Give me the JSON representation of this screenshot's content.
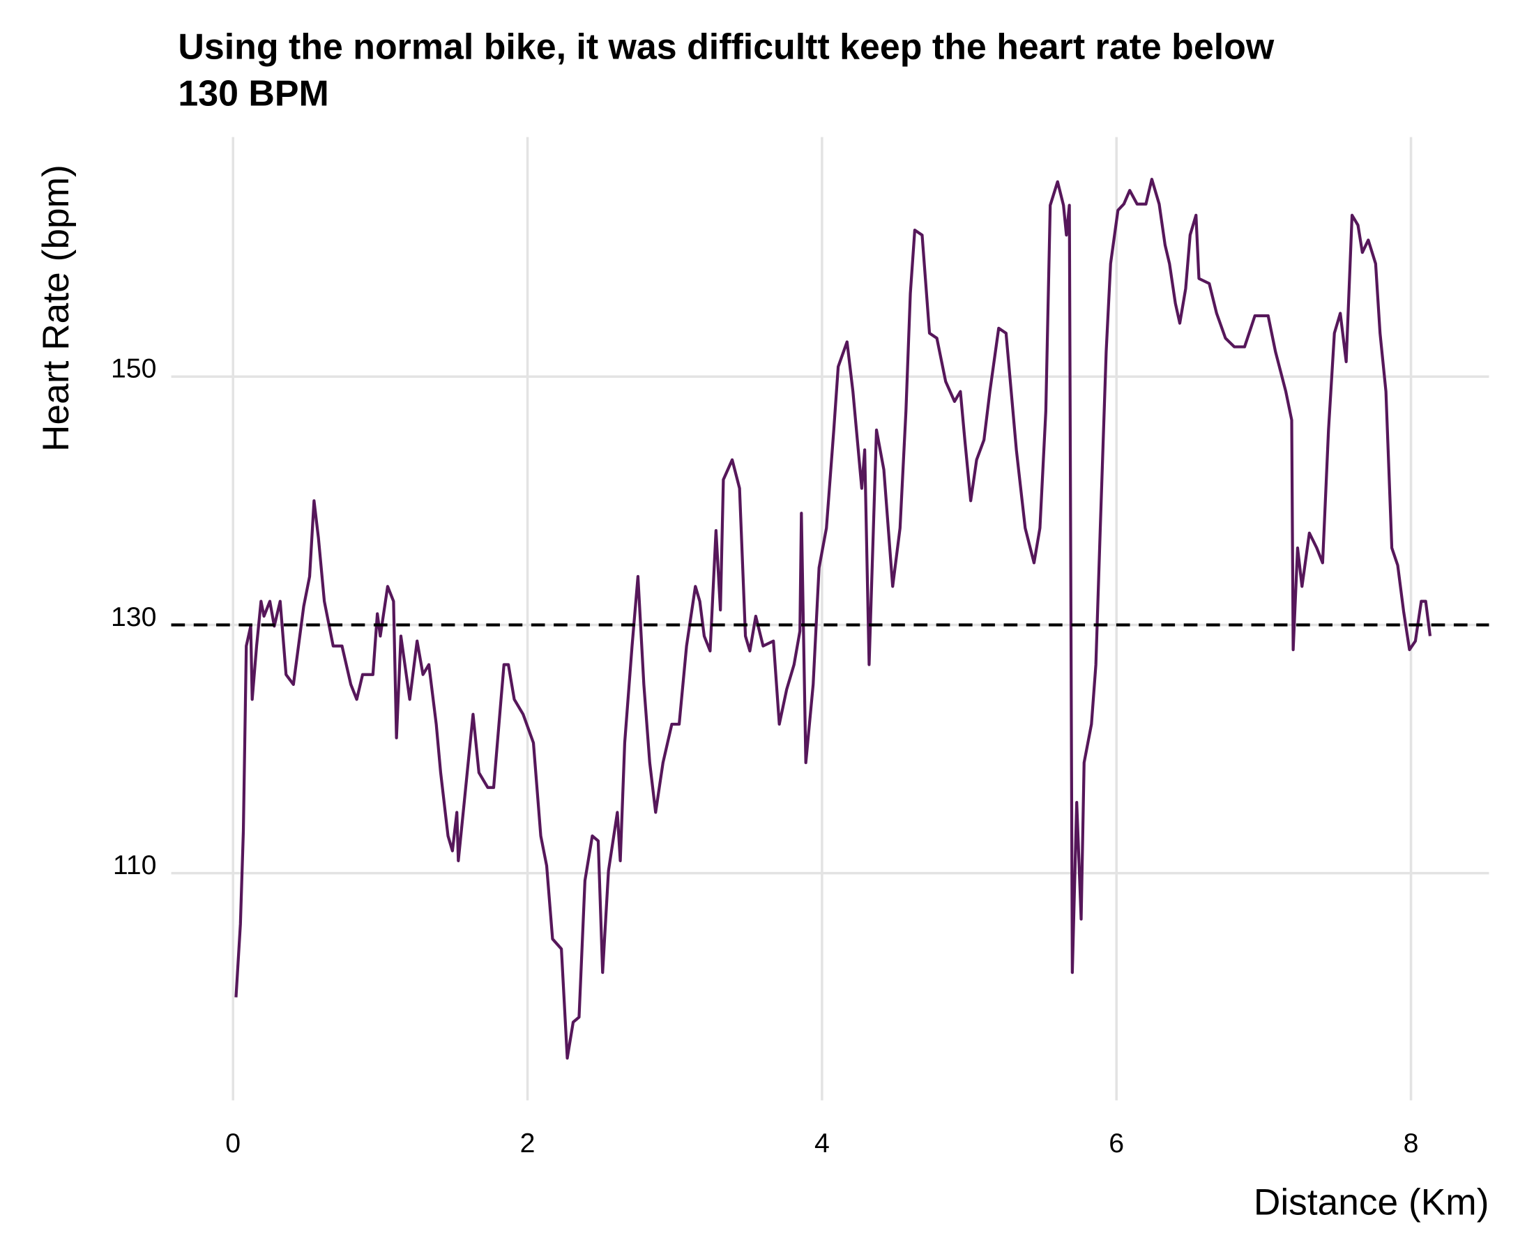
{
  "chart_data": {
    "type": "line",
    "title": [
      "Using the normal bike, it was difficultt keep the heart rate below",
      "130 BPM"
    ],
    "xlabel": "Distance (Km)",
    "ylabel": "Heart Rate (bpm)",
    "color": "#56175a",
    "hline": {
      "value": 130,
      "color": "#000000",
      "style": "dashed"
    },
    "xlim": [
      -0.42,
      8.53
    ],
    "ylim": [
      91.7,
      169.3
    ],
    "xticks": [
      0,
      2,
      4,
      6,
      8
    ],
    "yticks": [
      110,
      130,
      150
    ],
    "grid": true,
    "x": [
      0.02,
      0.05,
      0.07,
      0.09,
      0.12,
      0.13,
      0.16,
      0.19,
      0.21,
      0.25,
      0.28,
      0.32,
      0.36,
      0.41,
      0.48,
      0.52,
      0.55,
      0.58,
      0.62,
      0.68,
      0.74,
      0.8,
      0.84,
      0.88,
      0.95,
      0.98,
      1.0,
      1.05,
      1.09,
      1.11,
      1.14,
      1.2,
      1.25,
      1.29,
      1.33,
      1.38,
      1.41,
      1.46,
      1.49,
      1.52,
      1.53,
      1.57,
      1.63,
      1.67,
      1.73,
      1.77,
      1.82,
      1.84,
      1.87,
      1.91,
      1.97,
      2.04,
      2.09,
      2.13,
      2.17,
      2.23,
      2.27,
      2.31,
      2.35,
      2.39,
      2.44,
      2.48,
      2.51,
      2.55,
      2.61,
      2.63,
      2.66,
      2.71,
      2.75,
      2.79,
      2.83,
      2.87,
      2.92,
      2.98,
      3.03,
      3.08,
      3.14,
      3.17,
      3.2,
      3.24,
      3.28,
      3.31,
      3.33,
      3.39,
      3.44,
      3.48,
      3.51,
      3.55,
      3.6,
      3.67,
      3.71,
      3.76,
      3.81,
      3.85,
      3.86,
      3.89,
      3.94,
      3.98,
      4.03,
      4.08,
      4.11,
      4.17,
      4.21,
      4.27,
      4.29,
      4.32,
      4.37,
      4.42,
      4.48,
      4.53,
      4.57,
      4.6,
      4.63,
      4.68,
      4.73,
      4.78,
      4.84,
      4.9,
      4.94,
      4.97,
      5.01,
      5.05,
      5.1,
      5.14,
      5.2,
      5.25,
      5.32,
      5.38,
      5.44,
      5.48,
      5.52,
      5.55,
      5.6,
      5.64,
      5.66,
      5.68,
      5.7,
      5.73,
      5.76,
      5.78,
      5.83,
      5.86,
      5.89,
      5.93,
      5.96,
      6.01,
      6.05,
      6.09,
      6.14,
      6.2,
      6.24,
      6.29,
      6.33,
      6.36,
      6.4,
      6.43,
      6.47,
      6.5,
      6.54,
      6.56,
      6.63,
      6.68,
      6.74,
      6.8,
      6.87,
      6.94,
      7.03,
      7.08,
      7.15,
      7.19,
      7.2,
      7.23,
      7.26,
      7.31,
      7.36,
      7.4,
      7.44,
      7.48,
      7.52,
      7.56,
      7.6,
      7.64,
      7.67,
      7.71,
      7.76,
      7.79,
      7.83,
      7.87,
      7.91,
      7.95,
      7.99,
      8.03,
      8.07,
      8.1,
      8.13
    ],
    "values": [
      100.0,
      105.9,
      113.4,
      128.3,
      129.9,
      124.0,
      128.3,
      131.9,
      130.7,
      131.9,
      129.9,
      131.9,
      126.0,
      125.2,
      131.5,
      133.9,
      140.0,
      137.0,
      131.9,
      128.3,
      128.3,
      125.2,
      124.0,
      126.0,
      126.0,
      130.9,
      129.1,
      133.1,
      131.9,
      120.9,
      129.1,
      124.0,
      128.7,
      126.0,
      126.8,
      122.0,
      118.1,
      113.0,
      111.8,
      114.9,
      111.0,
      115.7,
      122.8,
      118.1,
      116.9,
      116.9,
      124.0,
      126.8,
      126.8,
      124.0,
      122.8,
      120.5,
      113.0,
      110.6,
      104.7,
      103.9,
      95.1,
      98.0,
      98.4,
      109.4,
      113.0,
      112.6,
      102.0,
      110.2,
      114.9,
      111.0,
      120.5,
      128.3,
      133.9,
      125.2,
      118.9,
      114.9,
      118.9,
      122.0,
      122.0,
      128.3,
      133.1,
      131.9,
      129.1,
      127.9,
      137.6,
      131.2,
      141.7,
      143.3,
      141.0,
      129.1,
      127.9,
      130.7,
      128.3,
      128.7,
      122.0,
      124.8,
      126.8,
      129.5,
      139.0,
      118.9,
      125.2,
      134.6,
      137.8,
      145.7,
      150.8,
      152.8,
      148.8,
      141.0,
      144.1,
      126.8,
      145.7,
      142.5,
      133.1,
      137.8,
      147.2,
      156.7,
      161.8,
      161.4,
      153.5,
      153.1,
      149.6,
      148.0,
      148.8,
      144.9,
      140.0,
      143.3,
      144.9,
      148.8,
      153.9,
      153.5,
      144.1,
      137.8,
      135.0,
      137.8,
      147.2,
      163.8,
      165.7,
      163.8,
      161.4,
      163.8,
      102.0,
      115.7,
      106.3,
      118.9,
      122.0,
      126.8,
      137.8,
      152.0,
      159.1,
      163.4,
      163.9,
      165.0,
      163.9,
      163.9,
      165.9,
      163.9,
      160.6,
      159.1,
      155.9,
      154.3,
      157.1,
      161.4,
      163.0,
      157.9,
      157.5,
      155.1,
      153.1,
      152.4,
      152.4,
      154.9,
      154.9,
      152.0,
      148.8,
      146.5,
      128.0,
      136.2,
      133.1,
      137.4,
      136.2,
      135.0,
      145.7,
      153.5,
      155.1,
      151.2,
      163.0,
      162.2,
      160.0,
      161.0,
      159.1,
      153.5,
      148.8,
      136.2,
      134.8,
      131.1,
      128.0,
      128.7,
      131.9,
      131.9,
      129.1
    ]
  }
}
